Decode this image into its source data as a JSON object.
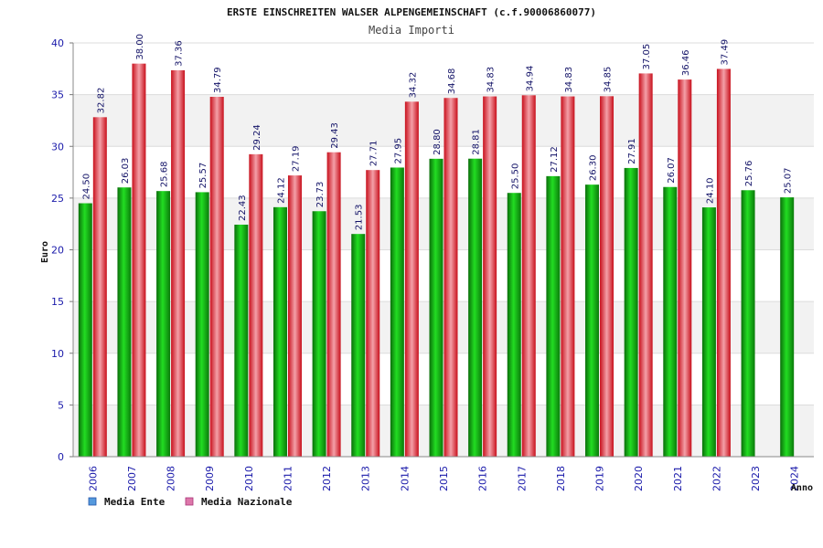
{
  "chart_data": {
    "type": "bar",
    "title": "ERSTE EINSCHREITEN WALSER ALPENGEMEINSCHAFT (c.f.90006860077)",
    "subtitle": "Media Importi",
    "xlabel": "Anno",
    "ylabel": "Euro",
    "ylim": [
      0,
      40
    ],
    "yticks": [
      0,
      5,
      10,
      15,
      20,
      25,
      30,
      35,
      40
    ],
    "grid": true,
    "legend_position": "bottom-left",
    "categories": [
      "2006",
      "2007",
      "2008",
      "2009",
      "2010",
      "2011",
      "2012",
      "2013",
      "2014",
      "2015",
      "2016",
      "2017",
      "2018",
      "2019",
      "2020",
      "2021",
      "2022",
      "2023",
      "2024"
    ],
    "series": [
      {
        "name": "Media Ente",
        "legend_color": "#5599dd",
        "bar_color": "#11aa11",
        "values": [
          24.5,
          26.03,
          25.68,
          25.57,
          22.43,
          24.12,
          23.73,
          21.53,
          27.95,
          28.8,
          28.81,
          25.5,
          27.12,
          26.3,
          27.91,
          26.07,
          24.1,
          25.76,
          25.07
        ],
        "labels": [
          "24.50",
          "26.03",
          "25.68",
          "25.57",
          "22.43",
          "24.12",
          "23.73",
          "21.53",
          "27.95",
          "28.80",
          "28.81",
          "25.50",
          "27.12",
          "26.30",
          "27.91",
          "26.07",
          "24.10",
          "25.76",
          "25.07"
        ]
      },
      {
        "name": "Media Nazionale",
        "legend_color": "#dd77aa",
        "bar_color": "#ee2233",
        "values": [
          32.82,
          38.0,
          37.36,
          34.79,
          29.24,
          27.19,
          29.43,
          27.71,
          34.32,
          34.68,
          34.83,
          34.94,
          34.83,
          34.85,
          37.05,
          36.46,
          37.49,
          null,
          null
        ],
        "labels": [
          "32.82",
          "38.00",
          "37.36",
          "34.79",
          "29.24",
          "27.19",
          "29.43",
          "27.71",
          "34.32",
          "34.68",
          "34.83",
          "34.94",
          "34.83",
          "34.85",
          "37.05",
          "36.46",
          "37.49",
          null,
          null
        ]
      }
    ]
  }
}
